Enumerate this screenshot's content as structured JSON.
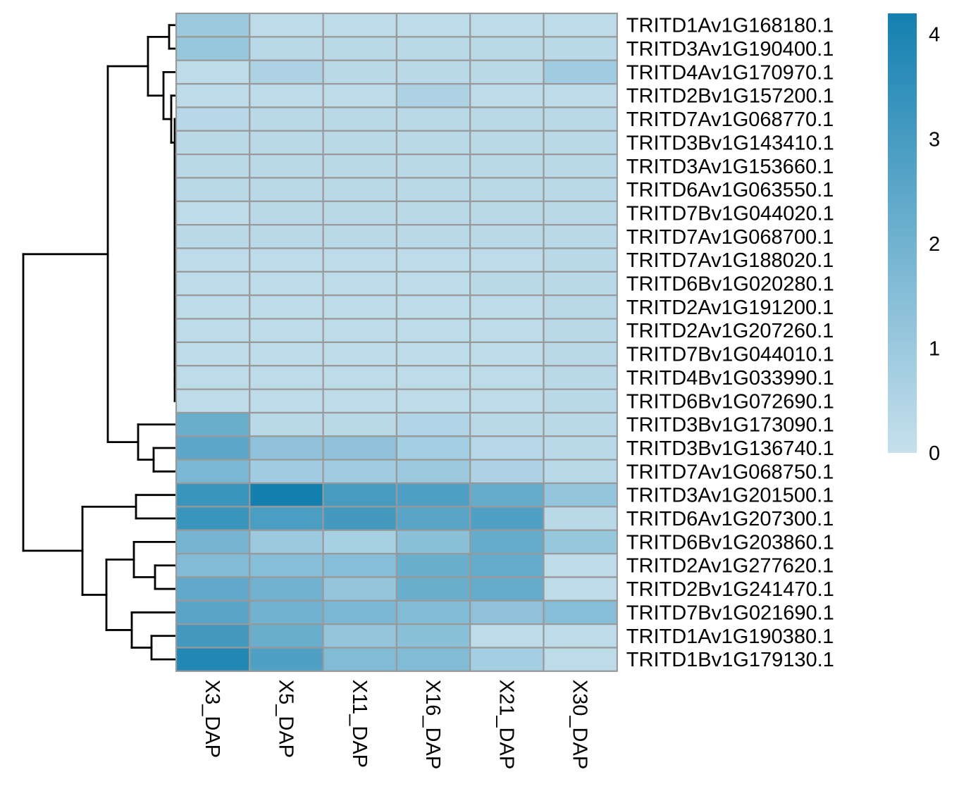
{
  "chart_data": {
    "type": "heatmap",
    "title": "",
    "columns": [
      "X3_DAP",
      "X5_DAP",
      "X11_DAP",
      "X16_DAP",
      "X21_DAP",
      "X30_DAP"
    ],
    "rows": [
      "TRITD1Av1G168180.1",
      "TRITD3Av1G190400.1",
      "TRITD4Av1G170970.1",
      "TRITD2Bv1G157200.1",
      "TRITD7Av1G068770.1",
      "TRITD3Bv1G143410.1",
      "TRITD3Av1G153660.1",
      "TRITD6Av1G063550.1",
      "TRITD7Bv1G044020.1",
      "TRITD7Av1G068700.1",
      "TRITD7Av1G188020.1",
      "TRITD6Bv1G020280.1",
      "TRITD2Av1G191200.1",
      "TRITD2Av1G207260.1",
      "TRITD7Bv1G044010.1",
      "TRITD4Bv1G033990.1",
      "TRITD6Bv1G072690.1",
      "TRITD3Bv1G173090.1",
      "TRITD3Bv1G136740.1",
      "TRITD7Av1G068750.1",
      "TRITD3Av1G201500.1",
      "TRITD6Av1G207300.1",
      "TRITD6Bv1G203860.1",
      "TRITD2Av1G277620.1",
      "TRITD2Bv1G241470.1",
      "TRITD7Bv1G021690.1",
      "TRITD1Av1G190380.1",
      "TRITD1Bv1G179130.1"
    ],
    "values": [
      [
        1.0,
        0.2,
        0.2,
        0.2,
        0.2,
        0.2
      ],
      [
        1.1,
        0.3,
        0.3,
        0.3,
        0.3,
        0.3
      ],
      [
        0.2,
        0.6,
        0.3,
        0.3,
        0.3,
        0.9
      ],
      [
        0.2,
        0.2,
        0.2,
        0.6,
        0.2,
        0.2
      ],
      [
        0.35,
        0.3,
        0.3,
        0.3,
        0.3,
        0.3
      ],
      [
        0.25,
        0.3,
        0.3,
        0.3,
        0.3,
        0.3
      ],
      [
        0.3,
        0.3,
        0.3,
        0.3,
        0.3,
        0.3
      ],
      [
        0.3,
        0.3,
        0.3,
        0.3,
        0.3,
        0.3
      ],
      [
        0.2,
        0.3,
        0.3,
        0.3,
        0.3,
        0.3
      ],
      [
        0.25,
        0.3,
        0.3,
        0.3,
        0.3,
        0.3
      ],
      [
        0.2,
        0.2,
        0.2,
        0.2,
        0.2,
        0.3
      ],
      [
        0.2,
        0.2,
        0.2,
        0.2,
        0.3,
        0.3
      ],
      [
        0.2,
        0.2,
        0.2,
        0.2,
        0.2,
        0.3
      ],
      [
        0.2,
        0.2,
        0.2,
        0.2,
        0.2,
        0.3
      ],
      [
        0.2,
        0.2,
        0.2,
        0.2,
        0.2,
        0.3
      ],
      [
        0.2,
        0.2,
        0.2,
        0.2,
        0.2,
        0.3
      ],
      [
        0.2,
        0.2,
        0.2,
        0.2,
        0.2,
        0.3
      ],
      [
        2.2,
        0.3,
        0.3,
        0.5,
        0.3,
        0.3
      ],
      [
        2.5,
        1.3,
        1.3,
        0.8,
        0.4,
        0.3
      ],
      [
        1.8,
        0.9,
        0.9,
        1.0,
        0.6,
        0.3
      ],
      [
        3.3,
        4.2,
        3.0,
        2.8,
        2.3,
        1.2
      ],
      [
        3.3,
        2.9,
        3.1,
        2.6,
        2.8,
        0.3
      ],
      [
        1.9,
        1.0,
        0.7,
        1.4,
        2.3,
        1.1
      ],
      [
        1.6,
        1.5,
        1.5,
        2.2,
        2.3,
        0.2
      ],
      [
        2.4,
        2.0,
        1.2,
        2.2,
        2.3,
        0.2
      ],
      [
        2.6,
        2.0,
        1.8,
        1.6,
        1.3,
        1.5
      ],
      [
        3.1,
        2.2,
        1.2,
        1.4,
        0.2,
        0.2
      ],
      [
        3.9,
        2.8,
        1.6,
        1.6,
        0.8,
        0.2
      ]
    ],
    "color_scale": {
      "min": 0,
      "max": 4.2,
      "low_color": "#c6e0ed",
      "high_color": "#1480b0",
      "ticks": [
        0,
        1,
        2,
        3,
        4
      ]
    },
    "cell_border_color": "#999999",
    "row_dendrogram": true,
    "legend_position": "right"
  }
}
